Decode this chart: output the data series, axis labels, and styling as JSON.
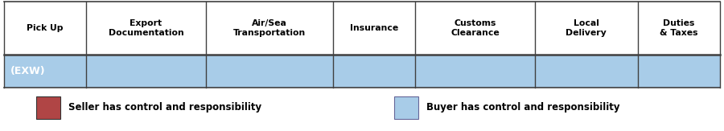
{
  "columns": [
    "Pick Up",
    "Export\nDocumentation",
    "Air/Sea\nTransportation",
    "Insurance",
    "Customs\nClearance",
    "Local\nDelivery",
    "Duties\n& Taxes"
  ],
  "col_widths": [
    1.0,
    1.45,
    1.55,
    1.0,
    1.45,
    1.25,
    1.0
  ],
  "row_label": "(EXW)",
  "seller_color": "#b04545",
  "buyer_color": "#a8cce8",
  "header_bg": "#ffffff",
  "grid_color": "#404040",
  "seller_legend": "Seller has control and responsibility",
  "buyer_legend": "Buyer has control and responsibility",
  "text_color": "#000000",
  "row_label_color": "#ffffff",
  "bg_color": "#ffffff",
  "fig_width": 9.0,
  "fig_height": 1.63,
  "dpi": 100
}
